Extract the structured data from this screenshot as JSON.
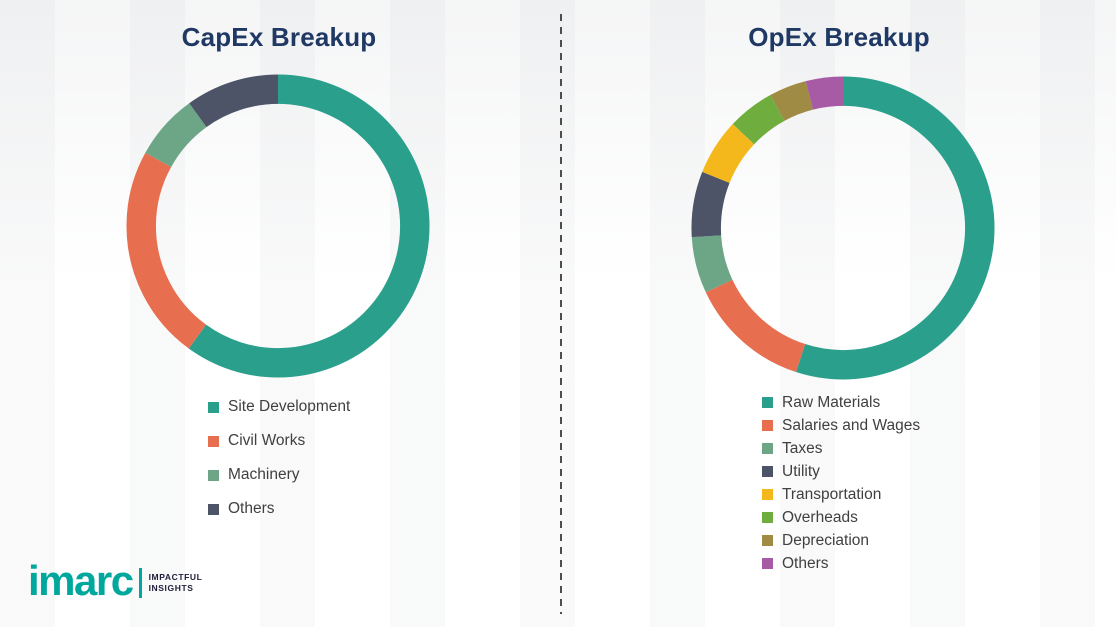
{
  "chart_data": [
    {
      "type": "pie",
      "subtype": "donut",
      "title": "CapEx Breakup",
      "legend_position": "bottom",
      "segments": [
        {
          "label": "Site Development",
          "value": 60,
          "color": "#2aa08c"
        },
        {
          "label": "Civil Works",
          "value": 23,
          "color": "#e76e4e"
        },
        {
          "label": "Machinery",
          "value": 7,
          "color": "#6ca687"
        },
        {
          "label": "Others",
          "value": 10,
          "color": "#4d5468"
        }
      ]
    },
    {
      "type": "pie",
      "subtype": "donut",
      "title": "OpEx Breakup",
      "legend_position": "bottom",
      "segments": [
        {
          "label": "Raw Materials",
          "value": 55,
          "color": "#2aa08c"
        },
        {
          "label": "Salaries and Wages",
          "value": 13,
          "color": "#e76e4e"
        },
        {
          "label": "Taxes",
          "value": 6,
          "color": "#6ca687"
        },
        {
          "label": "Utility",
          "value": 7,
          "color": "#4d5468"
        },
        {
          "label": "Transportation",
          "value": 6,
          "color": "#f5b81c"
        },
        {
          "label": "Overheads",
          "value": 5,
          "color": "#6fae3e"
        },
        {
          "label": "Depreciation",
          "value": 4,
          "color": "#a08b45"
        },
        {
          "label": "Others",
          "value": 4,
          "color": "#a75ba4"
        }
      ]
    }
  ],
  "logo": {
    "brand": "imarc",
    "tagline1": "IMPACTFUL",
    "tagline2": "INSIGHTS",
    "color": "#00a79d"
  },
  "colors": {
    "title": "#1f3864",
    "legend_text": "#404040"
  }
}
